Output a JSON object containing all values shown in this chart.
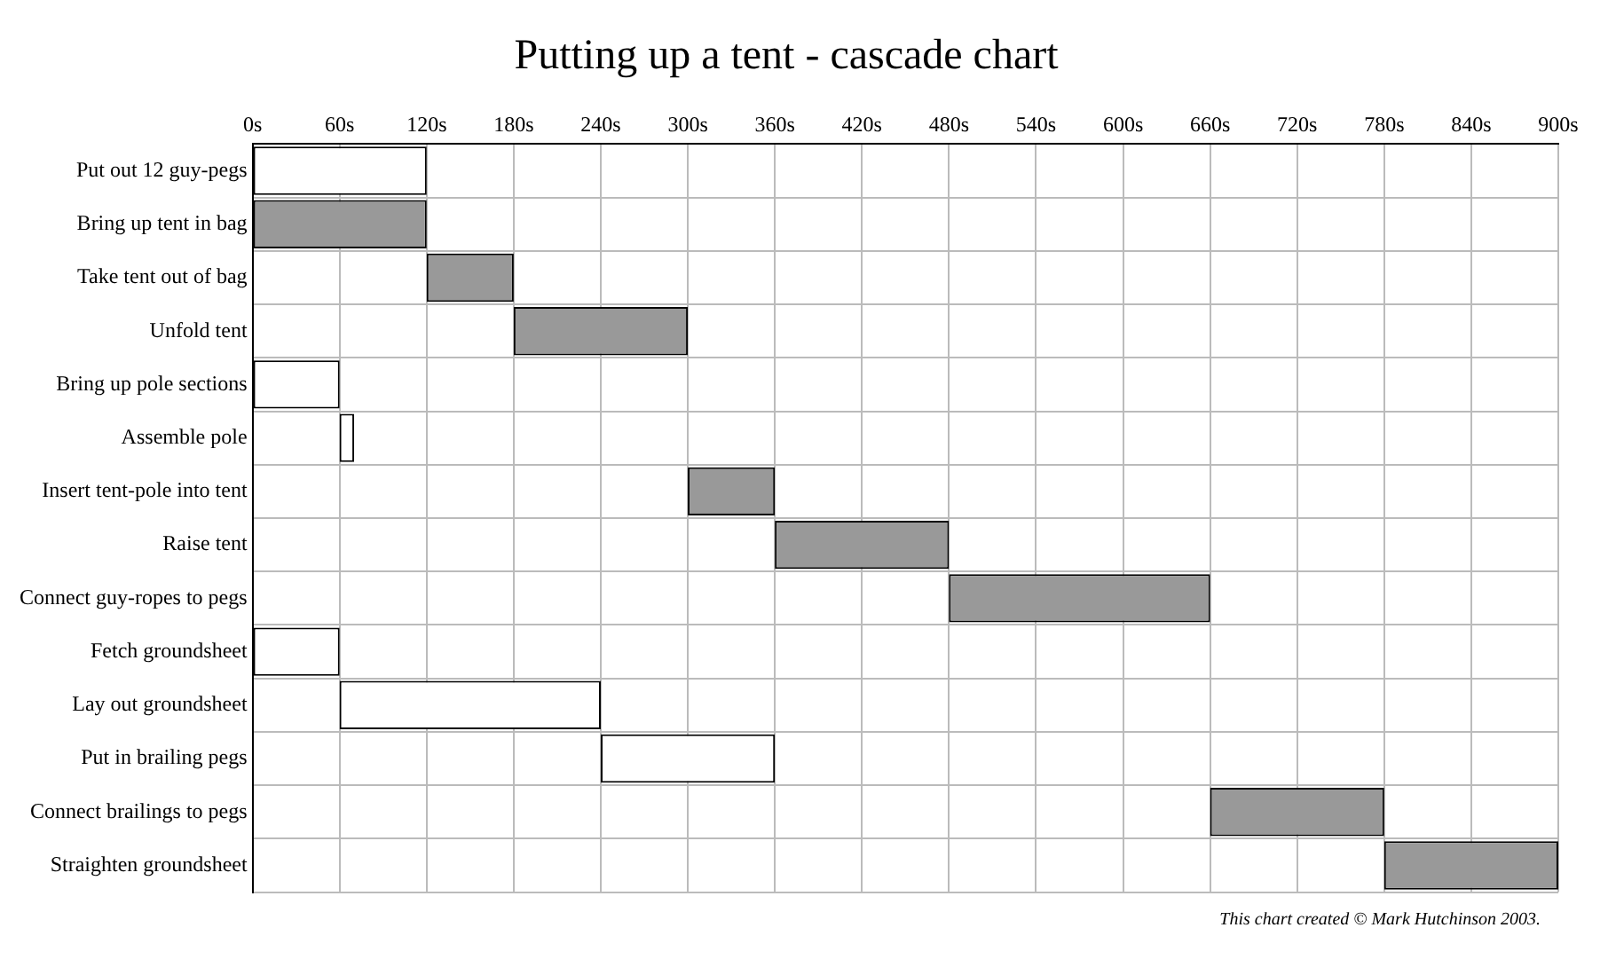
{
  "chart_data": {
    "type": "bar",
    "orientation": "horizontal",
    "title": "Putting up a tent - cascade chart",
    "categories": [
      "Put out 12 guy-pegs",
      "Bring up tent in bag",
      "Take tent out of bag",
      "Unfold tent",
      "Bring up pole sections",
      "Assemble pole",
      "Insert tent-pole into tent",
      "Raise tent",
      "Connect guy-ropes to pegs",
      "Fetch groundsheet",
      "Lay out groundsheet",
      "Put in brailing pegs",
      "Connect brailings to pegs",
      "Straighten groundsheet"
    ],
    "base": [
      0,
      0,
      120,
      180,
      0,
      60,
      300,
      360,
      480,
      0,
      60,
      240,
      660,
      780
    ],
    "values": [
      120,
      120,
      60,
      120,
      60,
      10,
      60,
      120,
      180,
      60,
      180,
      120,
      120,
      120
    ],
    "colors": [
      "#ffffff",
      "#999999",
      "#999999",
      "#999999",
      "#ffffff",
      "#ffffff",
      "#999999",
      "#999999",
      "#999999",
      "#ffffff",
      "#ffffff",
      "#ffffff",
      "#999999",
      "#999999"
    ],
    "xlim": [
      0,
      900
    ],
    "xticks": [
      {
        "value": 0,
        "label": "0s"
      },
      {
        "value": 60,
        "label": "60s"
      },
      {
        "value": 120,
        "label": "120s"
      },
      {
        "value": 180,
        "label": "180s"
      },
      {
        "value": 240,
        "label": "240s"
      },
      {
        "value": 300,
        "label": "300s"
      },
      {
        "value": 360,
        "label": "360s"
      },
      {
        "value": 420,
        "label": "420s"
      },
      {
        "value": 480,
        "label": "480s"
      },
      {
        "value": 540,
        "label": "540s"
      },
      {
        "value": 600,
        "label": "600s"
      },
      {
        "value": 660,
        "label": "660s"
      },
      {
        "value": 720,
        "label": "720s"
      },
      {
        "value": 780,
        "label": "780s"
      },
      {
        "value": 840,
        "label": "840s"
      },
      {
        "value": 900,
        "label": "900s"
      }
    ],
    "grid": true,
    "annotations": [
      "This chart created © Mark Hutchinson 2003."
    ]
  }
}
